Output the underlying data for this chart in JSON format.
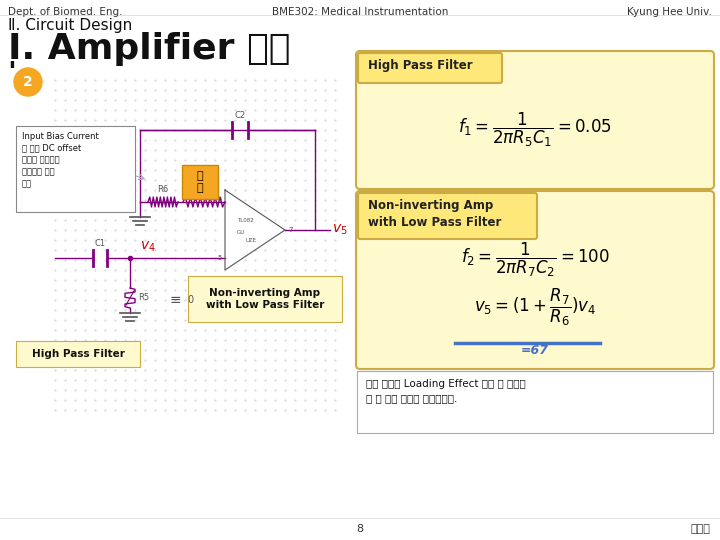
{
  "bg_color": "#ffffff",
  "header_left": "Dept. of Biomed. Eng.",
  "header_center": "BME302: Medical Instrumentation",
  "header_right": "Kyung Hee Univ.",
  "section_title": "Ⅱ. Circuit Design",
  "slide_title": "Ⅰ̩. Amplifier 단계",
  "circle_number": "2",
  "circle_color": "#f5a623",
  "bias_text": "Input Bias Current\n에 의한 DC offset\n전압의 불균형을\n없애주기 위해\n추가",
  "label_jeohang": "저\n항",
  "circuit_lpf_label": "Non-inverting Amp\nwith Low Pass Filter",
  "circuit_hpf_label": "High Pass Filter",
  "hpf_box_title": "High Pass Filter",
  "lpf_box_title": "Non-inverting Amp\nwith Low Pass Filter",
  "lpf_result": "=67",
  "note_text": "반전 증폭은 Loading Effect 생길 것 같으마\n로 비 반전 증폭을 이용하였다.",
  "footer_center": "8",
  "footer_right": "김소연",
  "hpf_box_color": "#fffacd",
  "lpf_box_color": "#fffacd",
  "box_edge_color": "#ccaa44",
  "underline_color": "#4472c4",
  "result_color": "#4472c4",
  "circuit_color": "#800080",
  "v5_color": "#cc0000",
  "v4_color": "#cc0000",
  "jeohang_color": "#f5a623"
}
